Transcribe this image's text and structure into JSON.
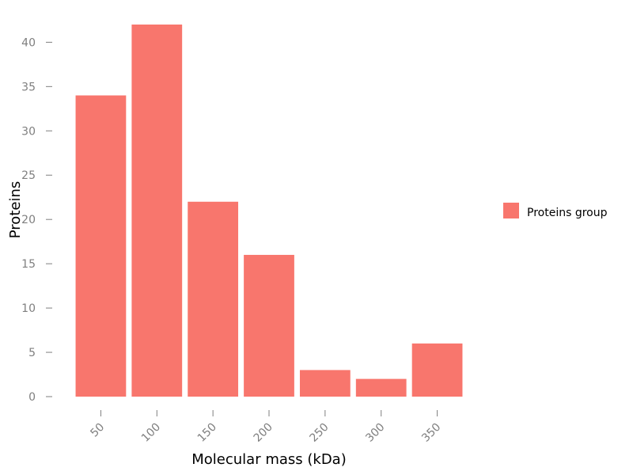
{
  "chart_data": {
    "type": "bar",
    "categories": [
      "50",
      "100",
      "150",
      "200",
      "250",
      "300",
      "350"
    ],
    "series": [
      {
        "name": "Proteins group",
        "values": [
          34,
          42,
          22,
          16,
          3,
          2,
          6
        ]
      }
    ],
    "xlabel": "Molecular mass (kDa)",
    "ylabel": "Proteins",
    "ylim": [
      0,
      42
    ],
    "yticks": [
      0,
      5,
      10,
      15,
      20,
      25,
      30,
      35,
      40
    ],
    "grid": false,
    "legend_position": "right",
    "colors": {
      "bar": "#f8766d",
      "tick": "#7f7f7f",
      "text": "#000000"
    }
  }
}
